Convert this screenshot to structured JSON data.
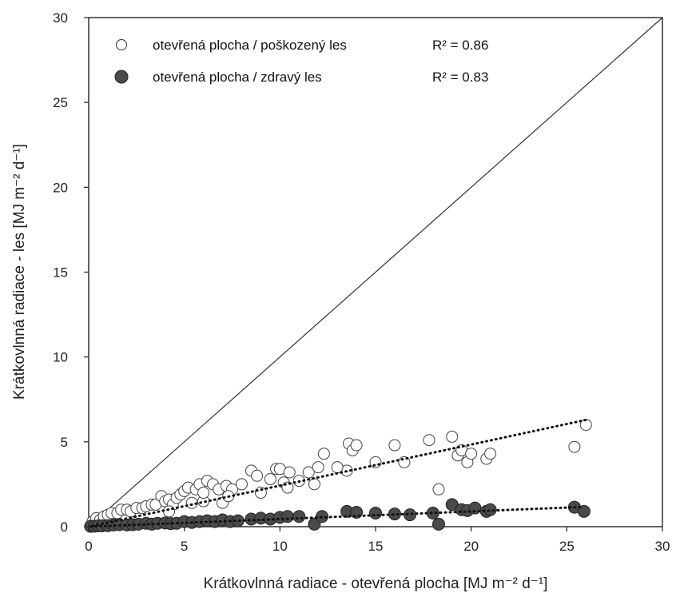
{
  "chart_data": {
    "type": "scatter",
    "xlabel": "Krátkovlnná radiace - otevřená plocha [MJ m⁻² d⁻¹]",
    "ylabel": "Krátkovlnná radiace - les [MJ m⁻² d⁻¹]",
    "xlim": [
      0,
      30
    ],
    "ylim": [
      0,
      30
    ],
    "xticks": [
      "0",
      "5",
      "10",
      "15",
      "20",
      "25",
      "30"
    ],
    "yticks": [
      "0",
      "5",
      "10",
      "15",
      "20",
      "25",
      "30"
    ],
    "grid": false,
    "legend_position": "top-left",
    "reference_line": {
      "type": "1:1",
      "from": [
        0,
        0
      ],
      "to": [
        30,
        30
      ]
    },
    "series": [
      {
        "name": "otevřená plocha / poškozený les",
        "r2_label": "R² = 0.86",
        "marker": "open-circle",
        "color": "#333333",
        "trend": {
          "slope": 0.242,
          "intercept": 0.0
        },
        "x": [
          0.2,
          0.4,
          0.6,
          0.8,
          1.0,
          1.2,
          1.5,
          1.7,
          2.0,
          2.2,
          2.5,
          2.8,
          3.0,
          3.3,
          3.5,
          3.8,
          4.0,
          4.2,
          4.4,
          4.6,
          4.8,
          5.0,
          5.2,
          5.4,
          5.6,
          5.8,
          6.0,
          6.2,
          6.5,
          6.8,
          7.0,
          7.2,
          7.5,
          8.0,
          8.5,
          8.8,
          9.0,
          9.5,
          9.8,
          10.0,
          10.2,
          10.5,
          11.0,
          11.5,
          11.8,
          12.0,
          12.3,
          13.5,
          13.6,
          13.8,
          14.0,
          15.0,
          16.0,
          16.5,
          17.8,
          18.3,
          19.0,
          19.3,
          19.5,
          19.8,
          20.0,
          20.8,
          21.0,
          25.4,
          26.0,
          7.3,
          6.0,
          4.2,
          13.0,
          10.4
        ],
        "y": [
          0.3,
          0.5,
          0.4,
          0.6,
          0.7,
          0.8,
          0.8,
          1.0,
          1.0,
          0.9,
          1.1,
          1.1,
          1.2,
          1.3,
          1.3,
          1.8,
          1.5,
          1.6,
          1.3,
          1.7,
          1.9,
          2.1,
          2.3,
          1.4,
          2.2,
          2.5,
          1.5,
          2.7,
          2.5,
          2.2,
          1.4,
          2.4,
          2.2,
          2.5,
          3.3,
          3.0,
          2.0,
          2.8,
          3.4,
          3.4,
          2.6,
          3.2,
          2.7,
          3.2,
          2.5,
          3.5,
          4.3,
          3.3,
          4.9,
          4.5,
          4.8,
          3.8,
          4.8,
          3.8,
          5.1,
          2.2,
          5.3,
          4.2,
          4.5,
          3.8,
          4.3,
          4.0,
          4.3,
          4.7,
          6.0,
          1.8,
          2.0,
          0.9,
          3.5,
          2.3
        ]
      },
      {
        "name": "otevřená plocha / zdravý les",
        "r2_label": "R² = 0.83",
        "marker": "filled-circle",
        "color": "#4a4a4a",
        "trend": {
          "slope": 0.045,
          "intercept": 0.0
        },
        "x": [
          0.1,
          0.3,
          0.5,
          0.7,
          1.0,
          1.3,
          1.6,
          2.0,
          2.3,
          2.6,
          3.0,
          3.3,
          3.6,
          4.0,
          4.3,
          4.6,
          5.0,
          5.4,
          5.8,
          6.2,
          6.6,
          7.0,
          7.4,
          7.8,
          8.5,
          9.0,
          9.5,
          10.0,
          10.4,
          11.0,
          11.8,
          12.2,
          13.5,
          14.0,
          15.0,
          16.0,
          16.8,
          18.0,
          18.3,
          19.0,
          19.5,
          19.8,
          20.2,
          20.8,
          21.0,
          25.4,
          25.9
        ],
        "y": [
          0.02,
          0.03,
          0.05,
          0.05,
          0.06,
          0.1,
          0.12,
          0.1,
          0.12,
          0.15,
          0.2,
          0.15,
          0.2,
          0.22,
          0.18,
          0.2,
          0.3,
          0.25,
          0.3,
          0.35,
          0.3,
          0.4,
          0.3,
          0.35,
          0.45,
          0.5,
          0.45,
          0.55,
          0.6,
          0.6,
          0.15,
          0.6,
          0.9,
          0.85,
          0.8,
          0.75,
          0.7,
          0.8,
          0.15,
          1.3,
          1.0,
          0.95,
          1.1,
          0.9,
          1.0,
          1.15,
          0.9
        ]
      }
    ]
  }
}
